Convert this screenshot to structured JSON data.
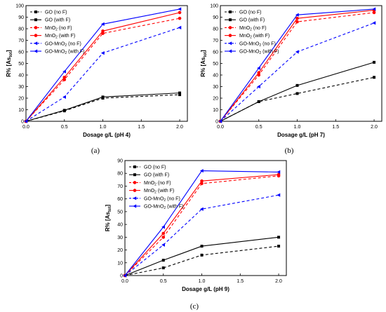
{
  "figure": {
    "colors": {
      "go": "#000000",
      "mno2": "#ff0000",
      "gomno2": "#0000ff"
    },
    "marker_glyphs": {
      "square-marker": "■",
      "circle-marker": "●",
      "triangle-left-marker": "◀"
    }
  },
  "chart_data": [
    {
      "type": "line",
      "panel_label": "(a)",
      "xlabel": "Dosage g/L (pH 4)",
      "ylabel_main": "R% [As",
      "ylabel_sub": "tot",
      "ylabel_end": "]",
      "xlim": [
        0,
        2.1
      ],
      "ylim": [
        0,
        100
      ],
      "xticks": [
        "0.0",
        "0.5",
        "1.0",
        "1.5",
        "2.0"
      ],
      "yticks": [
        "0",
        "10",
        "20",
        "30",
        "40",
        "50",
        "60",
        "70",
        "80",
        "90",
        "100"
      ],
      "grid": false,
      "legend_position": "top-left",
      "x": [
        0,
        0.5,
        1.0,
        2.0
      ],
      "series": [
        {
          "name": "GO (no F)",
          "values": [
            0,
            9,
            20,
            23
          ],
          "color": "#000000",
          "dash": true,
          "marker": "square"
        },
        {
          "name": "GO (with F)",
          "values": [
            0,
            9.5,
            21,
            24.5
          ],
          "color": "#000000",
          "dash": false,
          "marker": "square"
        },
        {
          "name": "MnO",
          "name_sub": "2",
          "name_end": " (no F)",
          "values": [
            0,
            36,
            76,
            89
          ],
          "color": "#ff0000",
          "dash": true,
          "marker": "circle"
        },
        {
          "name": "MnO",
          "name_sub": "2",
          "name_end": " (with F)",
          "values": [
            0,
            38,
            78,
            94
          ],
          "color": "#ff0000",
          "dash": false,
          "marker": "circle"
        },
        {
          "name": "GO-MnO",
          "name_sub": "2",
          "name_end": " (no F)",
          "values": [
            0,
            21,
            59,
            81
          ],
          "color": "#0000ff",
          "dash": true,
          "marker": "triangle"
        },
        {
          "name": "GO-MnO",
          "name_sub": "2",
          "name_end": " (with F)",
          "values": [
            0,
            43,
            84,
            97
          ],
          "color": "#0000ff",
          "dash": false,
          "marker": "triangle"
        }
      ]
    },
    {
      "type": "line",
      "panel_label": "(b)",
      "xlabel": "Dosage g/L (pH 7)",
      "ylabel_main": "R% [As",
      "ylabel_sub": "tot",
      "ylabel_end": "]",
      "xlim": [
        0,
        2.1
      ],
      "ylim": [
        0,
        100
      ],
      "xticks": [
        "0.0",
        "0.5",
        "1.0",
        "1.5",
        "2.0"
      ],
      "yticks": [
        "0",
        "10",
        "20",
        "30",
        "40",
        "50",
        "60",
        "70",
        "80",
        "90",
        "100"
      ],
      "grid": false,
      "legend_position": "top-left",
      "x": [
        0,
        0.5,
        1.0,
        2.0
      ],
      "series": [
        {
          "name": "GO (no F)",
          "values": [
            0,
            17,
            24,
            38
          ],
          "color": "#000000",
          "dash": true,
          "marker": "square"
        },
        {
          "name": "GO (with F)",
          "values": [
            0,
            17,
            31,
            51
          ],
          "color": "#000000",
          "dash": false,
          "marker": "square"
        },
        {
          "name": "MnO",
          "name_sub": "2",
          "name_end": " (no F)",
          "values": [
            0,
            40,
            86,
            94
          ],
          "color": "#ff0000",
          "dash": true,
          "marker": "circle"
        },
        {
          "name": "MnO",
          "name_sub": "2",
          "name_end": " (with F)",
          "values": [
            0,
            42,
            89,
            96
          ],
          "color": "#ff0000",
          "dash": false,
          "marker": "circle"
        },
        {
          "name": "GO-MnO",
          "name_sub": "2",
          "name_end": " (no F)",
          "values": [
            0,
            30,
            60,
            85
          ],
          "color": "#0000ff",
          "dash": true,
          "marker": "triangle"
        },
        {
          "name": "GO-MnO",
          "name_sub": "2",
          "name_end": " (with F)",
          "values": [
            0,
            46,
            92,
            97
          ],
          "color": "#0000ff",
          "dash": false,
          "marker": "triangle"
        }
      ]
    },
    {
      "type": "line",
      "panel_label": "(c)",
      "xlabel": "Dosage g/L (pH 9)",
      "ylabel_main": "R% [As",
      "ylabel_sub": "tot",
      "ylabel_end": "]",
      "xlim": [
        0,
        2.1
      ],
      "ylim": [
        0,
        90
      ],
      "xticks": [
        "0.0",
        "0.5",
        "1.0",
        "1.5",
        "2.0"
      ],
      "yticks": [
        "0",
        "10",
        "20",
        "30",
        "40",
        "50",
        "60",
        "70",
        "80",
        "90"
      ],
      "grid": false,
      "legend_position": "top-left",
      "x": [
        0,
        0.5,
        1.0,
        2.0
      ],
      "series": [
        {
          "name": "GO (no F)",
          "values": [
            0,
            6,
            16,
            23
          ],
          "color": "#000000",
          "dash": true,
          "marker": "square"
        },
        {
          "name": "GO (with F)",
          "values": [
            0,
            12,
            23,
            30
          ],
          "color": "#000000",
          "dash": false,
          "marker": "square"
        },
        {
          "name": "MnO",
          "name_sub": "2",
          "name_end": " (no F)",
          "values": [
            0,
            30,
            72,
            78
          ],
          "color": "#ff0000",
          "dash": true,
          "marker": "circle"
        },
        {
          "name": "MnO",
          "name_sub": "2",
          "name_end": " (with F)",
          "values": [
            0,
            33,
            74,
            79
          ],
          "color": "#ff0000",
          "dash": false,
          "marker": "circle"
        },
        {
          "name": "GO-MnO",
          "name_sub": "2",
          "name_end": " (no F)",
          "values": [
            0,
            24,
            52,
            63
          ],
          "color": "#0000ff",
          "dash": true,
          "marker": "triangle"
        },
        {
          "name": "GO-MnO",
          "name_sub": "2",
          "name_end": " (with F)",
          "values": [
            0,
            38,
            82,
            81
          ],
          "color": "#0000ff",
          "dash": false,
          "marker": "triangle"
        }
      ]
    }
  ]
}
